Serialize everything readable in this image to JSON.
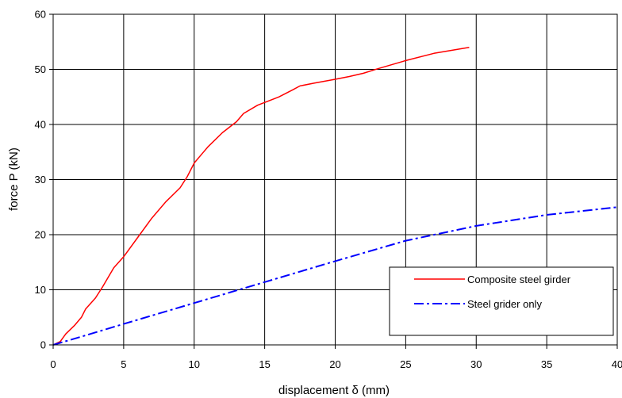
{
  "chart_data": {
    "type": "line",
    "xlabel": "displacement δ (mm)",
    "ylabel": "force P (kN)",
    "xlim": [
      0,
      40
    ],
    "ylim": [
      0,
      60
    ],
    "xticks": [
      0,
      5,
      10,
      15,
      20,
      25,
      30,
      35,
      40
    ],
    "yticks": [
      0,
      10,
      20,
      30,
      40,
      50,
      60
    ],
    "grid": true,
    "legend_position": "right",
    "series": [
      {
        "name": "Composite steel girder",
        "color": "#ff0000",
        "style": "solid",
        "x": [
          0,
          0.5,
          0.9,
          1.5,
          2.0,
          2.3,
          3.0,
          3.5,
          4.3,
          5.0,
          6.0,
          7.0,
          8.0,
          9.0,
          9.5,
          10.0,
          10.5,
          11.0,
          12.0,
          13.0,
          13.5,
          14.5,
          16.0,
          17.0,
          17.5,
          18.5,
          20.0,
          21.0,
          22.0,
          23.0,
          25.0,
          27.0,
          29.5
        ],
        "y": [
          0,
          0.6,
          2.0,
          3.5,
          5.0,
          6.5,
          8.5,
          10.5,
          14.0,
          16.0,
          19.5,
          23.0,
          26.0,
          28.5,
          30.5,
          33.0,
          34.5,
          36.0,
          38.5,
          40.5,
          42.0,
          43.5,
          45.0,
          46.3,
          47.0,
          47.5,
          48.2,
          48.7,
          49.3,
          50.1,
          51.6,
          52.9,
          54.0
        ]
      },
      {
        "name": "Steel grider only",
        "color": "#0000ff",
        "style": "dash-dot",
        "x": [
          0,
          2,
          5,
          10,
          15,
          20,
          25,
          30,
          35,
          40
        ],
        "y": [
          0,
          1.5,
          3.8,
          7.6,
          11.4,
          15.2,
          18.9,
          21.6,
          23.6,
          25.0
        ]
      }
    ]
  }
}
